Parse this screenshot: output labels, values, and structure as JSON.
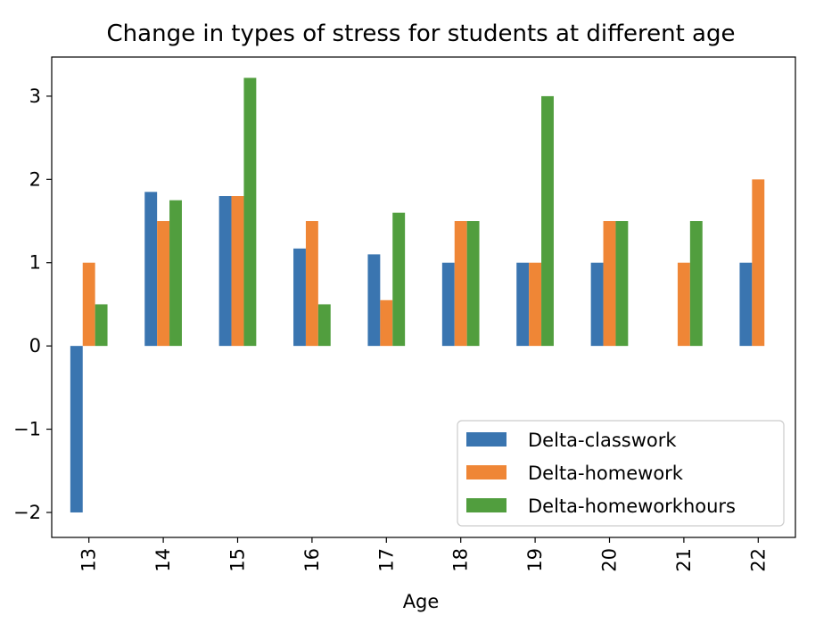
{
  "chart_data": {
    "type": "bar",
    "title": "Change in types of stress for students at different age",
    "xlabel": "Age",
    "ylabel": "",
    "categories": [
      "13",
      "14",
      "15",
      "16",
      "17",
      "18",
      "19",
      "20",
      "21",
      "22"
    ],
    "series": [
      {
        "name": "Delta-classwork",
        "color": "#3a75b0",
        "values": [
          -2,
          1.85,
          1.8,
          1.17,
          1.1,
          1,
          1,
          1,
          0,
          1
        ]
      },
      {
        "name": "Delta-homework",
        "color": "#ef8636",
        "values": [
          1,
          1.5,
          1.8,
          1.5,
          0.55,
          1.5,
          1,
          1.5,
          1,
          2
        ]
      },
      {
        "name": "Delta-homeworkhours",
        "color": "#519e3e",
        "values": [
          0.5,
          1.75,
          3.22,
          0.5,
          1.6,
          1.5,
          3,
          1.5,
          1.5,
          null
        ]
      }
    ],
    "yticks": [
      -2,
      -1,
      0,
      1,
      2,
      3
    ],
    "ytick_labels": [
      "−2",
      "−1",
      "0",
      "1",
      "2",
      "3"
    ],
    "ylim": [
      -2.3,
      3.47
    ],
    "grid": false,
    "legend_position": "lower-right"
  }
}
